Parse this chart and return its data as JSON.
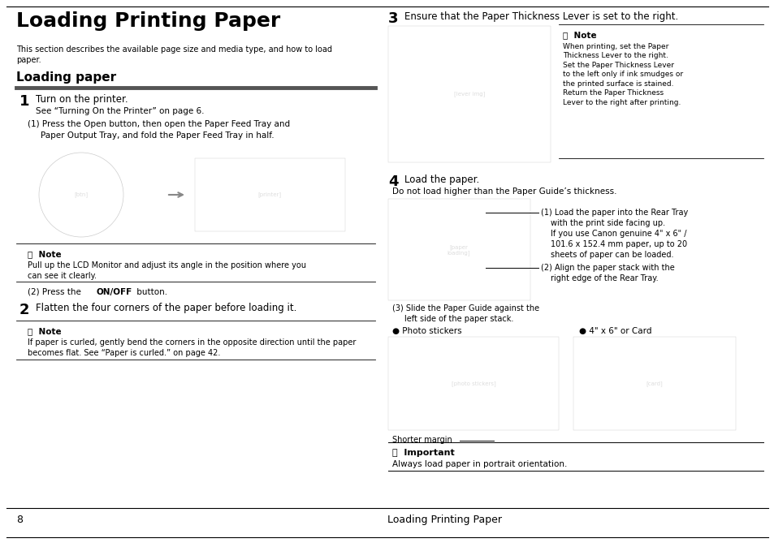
{
  "bg_color": "#ffffff",
  "page_width": 9.54,
  "page_height": 6.74,
  "title": "Loading Printing Paper",
  "subtitle": "This section describes the available page size and media type, and how to load\npaper.",
  "section_title": "Loading paper",
  "footer_page": "8",
  "footer_text": "Loading Printing Paper"
}
